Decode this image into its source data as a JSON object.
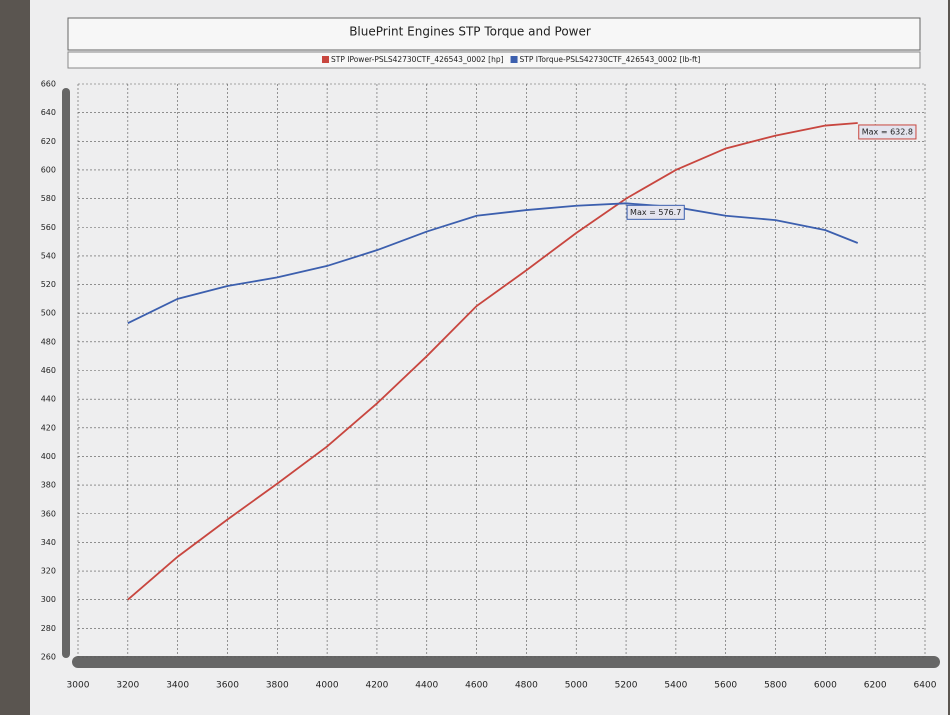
{
  "chart_data": {
    "type": "line",
    "title": "BluePrint Engines STP Torque and Power",
    "x": [
      3200,
      3400,
      3600,
      3800,
      4000,
      4200,
      4400,
      4600,
      4800,
      5000,
      5200,
      5400,
      5600,
      5800,
      6000,
      6130
    ],
    "series": [
      {
        "name": "STP IPower-PSLS42730CTF_426543_0002 [hp]",
        "color": "#c8463f",
        "values": [
          300,
          330,
          356,
          381,
          407,
          437,
          470,
          505,
          530,
          556,
          580,
          600,
          615,
          624,
          631,
          632.8
        ],
        "max_label": "Max = 632.8"
      },
      {
        "name": "STP ITorque-PSLS42730CTF_426543_0002 [lb-ft]",
        "color": "#3c5fae",
        "values": [
          493,
          510,
          519,
          525,
          533,
          544,
          557,
          568,
          572,
          575,
          576.7,
          574,
          568,
          565,
          558,
          549
        ],
        "max_label": "Max = 576.7"
      }
    ],
    "xlim": [
      3000,
      6400
    ],
    "xticks": [
      3000,
      3200,
      3400,
      3600,
      3800,
      4000,
      4200,
      4400,
      4600,
      4800,
      5000,
      5200,
      5400,
      5600,
      5800,
      6000,
      6200,
      6400
    ],
    "ylim": [
      260,
      660
    ],
    "yticks": [
      260,
      280,
      300,
      320,
      340,
      360,
      380,
      400,
      420,
      440,
      460,
      480,
      500,
      520,
      540,
      560,
      580,
      600,
      620,
      640,
      660
    ],
    "grid": true
  }
}
